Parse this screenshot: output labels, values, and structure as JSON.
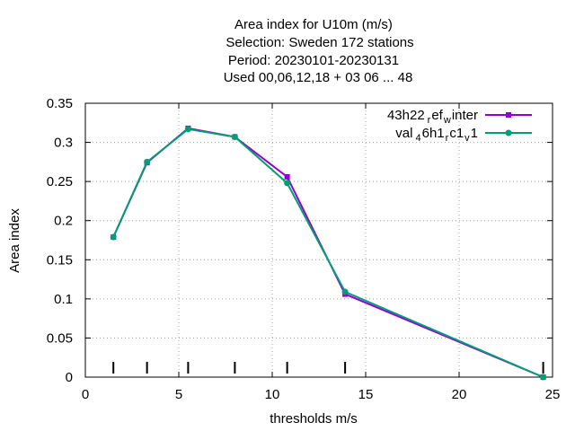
{
  "chart_data": {
    "type": "line",
    "title_lines": [
      "Area index  for U10m (m/s)",
      "Selection: Sweden     172 stations",
      "Period: 20230101-20230131",
      "Used  00,06,12,18  + 03 06 ... 48"
    ],
    "xlabel": "thresholds m/s",
    "ylabel": "Area index",
    "xlim": [
      0,
      25
    ],
    "ylim": [
      0,
      0.35
    ],
    "xticks": [
      "0",
      "5",
      "10",
      "15",
      "20",
      "25"
    ],
    "yticks": [
      "0",
      "0.05",
      "0.1",
      "0.15",
      "0.2",
      "0.25",
      "0.3",
      "0.35"
    ],
    "grid": true,
    "legend_position": "top-right",
    "threshold_marks": [
      1.5,
      3.3,
      5.5,
      8.0,
      10.8,
      13.9,
      24.5
    ],
    "series": [
      {
        "name": "43h22_ref_winter",
        "legend": {
          "a": "43h22",
          "b": "r",
          "c": "ef",
          "d": "w",
          "e": "inter"
        },
        "color": "#9400d3",
        "marker": "filled-square",
        "x": [
          1.5,
          3.3,
          5.5,
          8.0,
          10.8,
          13.9,
          24.5
        ],
        "y": [
          0.179,
          0.274,
          0.318,
          0.307,
          0.256,
          0.106,
          0.0
        ]
      },
      {
        "name": "val_46h1_rc1_v1",
        "legend": {
          "a": "val",
          "b": "4",
          "c": "6h1",
          "d": "r",
          "e": "c1",
          "f": "v",
          "g": "1"
        },
        "color": "#009e73",
        "marker": "filled-circle",
        "x": [
          1.5,
          3.3,
          5.5,
          8.0,
          10.8,
          13.9,
          24.5
        ],
        "y": [
          0.179,
          0.275,
          0.317,
          0.307,
          0.248,
          0.109,
          0.0
        ]
      }
    ]
  }
}
